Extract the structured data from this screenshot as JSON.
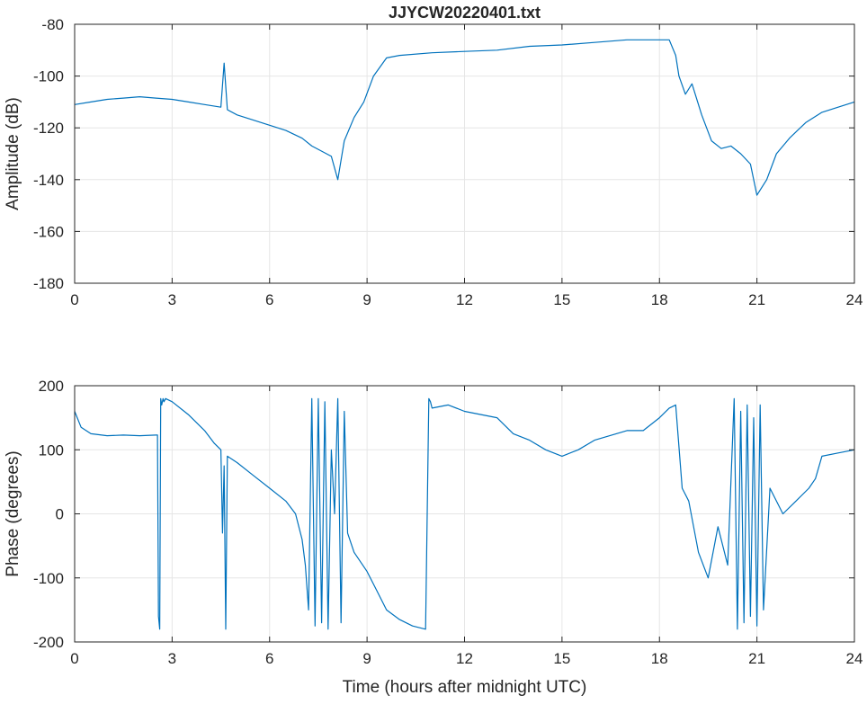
{
  "chart_data": [
    {
      "type": "line",
      "title": "JJYCW20220401.txt",
      "xlabel": "",
      "ylabel": "Amplitude (dB)",
      "xlim": [
        0,
        24
      ],
      "ylim": [
        -180,
        -80
      ],
      "xticks": [
        "0",
        "3",
        "6",
        "9",
        "12",
        "15",
        "18",
        "21",
        "24"
      ],
      "yticks": [
        "-80",
        "-100",
        "-120",
        "-140",
        "-160",
        "-180"
      ],
      "grid": true,
      "series": [
        {
          "color": "#0072bd",
          "x": [
            0,
            0.5,
            1,
            1.5,
            2,
            2.5,
            3,
            3.5,
            4,
            4.5,
            4.6,
            4.7,
            5,
            5.5,
            6,
            6.5,
            7,
            7.3,
            7.6,
            7.9,
            8.1,
            8.3,
            8.6,
            8.9,
            9.2,
            9.6,
            10,
            11,
            12,
            13,
            14,
            15,
            16,
            17,
            18,
            18.3,
            18.5,
            18.6,
            18.8,
            19,
            19.3,
            19.6,
            19.9,
            20.2,
            20.5,
            20.8,
            21,
            21.3,
            21.6,
            22,
            22.5,
            23,
            23.5,
            24
          ],
          "y": [
            -111,
            -110,
            -109,
            -108.5,
            -108,
            -108.5,
            -109,
            -110,
            -111,
            -112,
            -95,
            -113,
            -115,
            -117,
            -119,
            -121,
            -124,
            -127,
            -129,
            -131,
            -140,
            -125,
            -116,
            -110,
            -100,
            -93,
            -92,
            -91,
            -90.5,
            -90,
            -88.5,
            -88,
            -87,
            -86,
            -86,
            -86,
            -92,
            -100,
            -107,
            -103,
            -115,
            -125,
            -128,
            -127,
            -130,
            -134,
            -146,
            -140,
            -130,
            -124,
            -118,
            -114,
            -112,
            -110
          ]
        }
      ]
    },
    {
      "type": "line",
      "title": "",
      "xlabel": "Time (hours after midnight UTC)",
      "ylabel": "Phase (degrees)",
      "xlim": [
        0,
        24
      ],
      "ylim": [
        -200,
        200
      ],
      "xticks": [
        "0",
        "3",
        "6",
        "9",
        "12",
        "15",
        "18",
        "21",
        "24"
      ],
      "yticks": [
        "200",
        "100",
        "0",
        "-100",
        "-200"
      ],
      "grid": true,
      "series": [
        {
          "color": "#0072bd",
          "x": [
            0,
            0.2,
            0.5,
            1,
            1.5,
            2,
            2.5,
            2.55,
            2.58,
            2.62,
            2.65,
            2.68,
            2.72,
            2.75,
            2.8,
            3,
            3.5,
            4,
            4.3,
            4.5,
            4.55,
            4.6,
            4.65,
            4.7,
            5,
            5.5,
            6,
            6.5,
            6.8,
            7,
            7.1,
            7.2,
            7.3,
            7.4,
            7.5,
            7.6,
            7.7,
            7.8,
            7.9,
            8,
            8.1,
            8.2,
            8.3,
            8.4,
            8.6,
            9,
            9.3,
            9.6,
            10,
            10.4,
            10.8,
            10.9,
            10.95,
            11,
            11.5,
            12,
            13,
            13.5,
            14,
            14.5,
            15,
            15.5,
            16,
            17,
            17.5,
            18,
            18.3,
            18.5,
            18.7,
            18.9,
            19.2,
            19.5,
            19.8,
            20.1,
            20.3,
            20.4,
            20.5,
            20.6,
            20.7,
            20.8,
            20.9,
            21,
            21.1,
            21.2,
            21.4,
            21.8,
            22.2,
            22.6,
            22.8,
            23,
            23.5,
            24
          ],
          "y": [
            160,
            135,
            125,
            122,
            123,
            122,
            123,
            123,
            -160,
            -180,
            180,
            170,
            180,
            175,
            180,
            175,
            155,
            130,
            110,
            100,
            -30,
            75,
            -180,
            90,
            80,
            60,
            40,
            20,
            0,
            -40,
            -80,
            -150,
            180,
            -175,
            180,
            -170,
            175,
            -180,
            100,
            0,
            180,
            -170,
            160,
            -30,
            -60,
            -90,
            -120,
            -150,
            -165,
            -175,
            -180,
            180,
            175,
            165,
            170,
            160,
            150,
            125,
            115,
            100,
            90,
            100,
            115,
            130,
            130,
            150,
            165,
            170,
            40,
            20,
            -60,
            -100,
            -20,
            -80,
            180,
            -180,
            160,
            -170,
            170,
            -160,
            150,
            -175,
            170,
            -150,
            40,
            0,
            20,
            40,
            55,
            90,
            95,
            100
          ]
        }
      ]
    }
  ]
}
